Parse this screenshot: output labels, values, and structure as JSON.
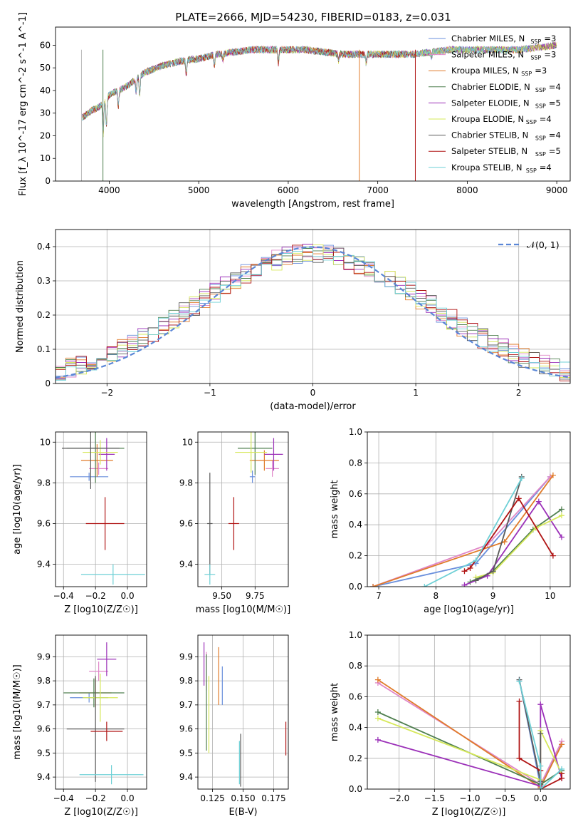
{
  "figure_title": "PLATE=2666, MJD=54230, FIBERID=0183, z=0.031",
  "models": [
    {
      "name": "Chabrier MILES",
      "nssp": "3",
      "color": "#6a8fdc"
    },
    {
      "name": "Salpeter MILES",
      "nssp": "3",
      "color": "#e087c8"
    },
    {
      "name": "Kroupa MILES",
      "nssp": "3",
      "color": "#e07b2a"
    },
    {
      "name": "Chabrier ELODIE",
      "nssp": "4",
      "color": "#4f7f4f"
    },
    {
      "name": "Salpeter ELODIE",
      "nssp": "5",
      "color": "#9b30b8"
    },
    {
      "name": "Kroupa ELODIE",
      "nssp": "4",
      "color": "#d6e85a"
    },
    {
      "name": "Chabrier STELIB",
      "nssp": "4",
      "color": "#5a5a5a"
    },
    {
      "name": "Salpeter STELIB",
      "nssp": "5",
      "color": "#b01515"
    },
    {
      "name": "Kroupa STELIB",
      "nssp": "4",
      "color": "#6ed0d6"
    }
  ],
  "chart_data": [
    {
      "id": "spectrum",
      "type": "line",
      "xlabel": "wavelength [Angstrom, rest frame]",
      "ylabel": "Flux [f_λ 10^-17 erg cm^-2 s^-1 A^-1]",
      "xlim": [
        3400,
        9150
      ],
      "ylim": [
        0,
        68
      ],
      "xticks": [
        4000,
        5000,
        6000,
        7000,
        8000,
        9000
      ],
      "yticks": [
        0,
        10,
        20,
        30,
        40,
        50,
        60
      ],
      "continuum_x": [
        3700,
        3800,
        3900,
        4000,
        4100,
        4200,
        4400,
        4600,
        4800,
        5000,
        5200,
        5400,
        5600,
        5800,
        6000,
        6200,
        6400,
        6600,
        6800,
        7000,
        7200,
        7400,
        7600,
        7800,
        8000,
        8200,
        8400,
        8600,
        8800,
        9000
      ],
      "continuum_y": [
        28,
        31,
        33,
        38,
        40,
        42,
        48,
        51,
        53,
        54,
        56,
        57,
        58,
        58,
        58,
        58,
        57,
        56,
        56,
        56,
        56,
        56,
        57,
        58,
        58,
        58,
        58,
        58,
        59,
        60
      ],
      "absorption_lines_x": [
        3933,
        3968,
        4102,
        4300,
        4340,
        4861,
        5175,
        5270,
        5890,
        6563,
        6870,
        7600
      ],
      "absorption_depth": [
        14,
        12,
        8,
        6,
        8,
        6,
        5,
        3,
        6,
        3,
        4,
        2
      ],
      "spikes": [
        {
          "x": 3930,
          "color": "#4f7f4f"
        },
        {
          "x": 6795,
          "color": "#e07b2a"
        },
        {
          "x": 7420,
          "color": "#b01515"
        },
        {
          "x": 3690,
          "color": "#bbbbbb"
        }
      ],
      "grid": false,
      "legend_position": "right"
    },
    {
      "id": "residuals",
      "type": "line",
      "xlabel": "(data-model)/error",
      "ylabel": "Normed distribution",
      "xlim": [
        -2.5,
        2.5
      ],
      "ylim": [
        0,
        0.45
      ],
      "xticks": [
        -2,
        -1,
        0,
        1,
        2
      ],
      "xticklabels": [
        "−2",
        "−1",
        "0",
        "1",
        "2"
      ],
      "yticks": [
        0.0,
        0.1,
        0.2,
        0.3,
        0.4
      ],
      "gaussian_label": "𝒩(0, 1)",
      "gaussian_color": "#5a86d6",
      "bin_width": 0.1,
      "grid": true,
      "legend_position": "top-right"
    },
    {
      "id": "age_vs_Z",
      "type": "scatter",
      "xlabel": "Z [log10(Z/Z☉)]",
      "ylabel": "age [log10(age/yr)]",
      "xlim": [
        -0.45,
        0.12
      ],
      "ylim": [
        9.29,
        10.05
      ],
      "xticks": [
        -0.4,
        -0.2,
        0.0
      ],
      "xticklabels": [
        "−0.4",
        "−0.2",
        "0.0"
      ],
      "yticks": [
        9.4,
        9.6,
        9.8,
        10.0
      ],
      "points": [
        {
          "m": 0,
          "x": -0.24,
          "y": 9.83,
          "xerr": 0.12,
          "yerr": 0.02
        },
        {
          "m": 1,
          "x": -0.18,
          "y": 9.87,
          "xerr": 0.06,
          "yerr": 0.03
        },
        {
          "m": 2,
          "x": -0.19,
          "y": 9.91,
          "xerr": 0.1,
          "yerr": 0.08
        },
        {
          "m": 3,
          "x": -0.2,
          "y": 9.97,
          "xerr": 0.18,
          "yerr": 0.17
        },
        {
          "m": 4,
          "x": -0.13,
          "y": 9.94,
          "xerr": 0.05,
          "yerr": 0.08
        },
        {
          "m": 5,
          "x": -0.17,
          "y": 9.95,
          "xerr": 0.11,
          "yerr": 0.06
        },
        {
          "m": 6,
          "x": -0.23,
          "y": 9.97,
          "xerr": 0.18,
          "yerr": 0.2
        },
        {
          "m": 7,
          "x": -0.14,
          "y": 9.6,
          "xerr": 0.12,
          "yerr": 0.13
        },
        {
          "m": 8,
          "x": -0.09,
          "y": 9.35,
          "xerr": 0.2,
          "yerr": 0.05
        }
      ],
      "grid": true
    },
    {
      "id": "age_vs_mass",
      "type": "scatter",
      "xlabel": "mass [log10(M/M☉)]",
      "ylabel": "",
      "xlim": [
        9.32,
        10.0
      ],
      "ylim": [
        9.29,
        10.05
      ],
      "xticks": [
        9.5,
        9.75
      ],
      "xticklabels": [
        "9.50",
        "9.75"
      ],
      "yticks": [
        9.4,
        9.6,
        9.8,
        10.0
      ],
      "points": [
        {
          "m": 0,
          "x": 9.73,
          "y": 9.83,
          "xerr": 0.02,
          "yerr": 0.03
        },
        {
          "m": 1,
          "x": 9.88,
          "y": 9.87,
          "xerr": 0.05,
          "yerr": 0.04
        },
        {
          "m": 2,
          "x": 9.82,
          "y": 9.91,
          "xerr": 0.11,
          "yerr": 0.05
        },
        {
          "m": 3,
          "x": 9.75,
          "y": 9.97,
          "xerr": 0.13,
          "yerr": 0.13
        },
        {
          "m": 4,
          "x": 9.89,
          "y": 9.94,
          "xerr": 0.07,
          "yerr": 0.08
        },
        {
          "m": 5,
          "x": 9.72,
          "y": 9.95,
          "xerr": 0.12,
          "yerr": 0.1
        },
        {
          "m": 6,
          "x": 9.41,
          "y": 9.6,
          "xerr": 0.02,
          "yerr": 0.25
        },
        {
          "m": 7,
          "x": 9.59,
          "y": 9.6,
          "xerr": 0.04,
          "yerr": 0.13
        },
        {
          "m": 8,
          "x": 9.41,
          "y": 9.35,
          "xerr": 0.04,
          "yerr": 0.05
        }
      ],
      "grid": true
    },
    {
      "id": "mass_weight_vs_age",
      "type": "line",
      "xlabel": "age [log10(age/yr)]",
      "ylabel": "mass weight",
      "xlim": [
        6.8,
        10.35
      ],
      "ylim": [
        0,
        1.0
      ],
      "xticks": [
        7,
        8,
        9,
        10
      ],
      "yticks": [
        0.0,
        0.2,
        0.4,
        0.6,
        0.8,
        1.0
      ],
      "yticklabels": [
        "0.0",
        "0.2",
        "0.4",
        "0.6",
        "0.8",
        "1.0"
      ],
      "series": [
        {
          "m": 0,
          "x": [
            6.9,
            8.7,
            10.0
          ],
          "y": [
            0.0,
            0.15,
            0.71
          ]
        },
        {
          "m": 1,
          "x": [
            6.9,
            8.9,
            10.0
          ],
          "y": [
            0.0,
            0.27,
            0.71
          ]
        },
        {
          "m": 2,
          "x": [
            6.9,
            9.2,
            10.05
          ],
          "y": [
            0.0,
            0.29,
            0.72
          ]
        },
        {
          "m": 3,
          "x": [
            8.6,
            9.0,
            9.7,
            10.2
          ],
          "y": [
            0.03,
            0.1,
            0.37,
            0.5
          ]
        },
        {
          "m": 4,
          "x": [
            8.5,
            8.9,
            9.8,
            10.2
          ],
          "y": [
            0.01,
            0.07,
            0.55,
            0.32
          ]
        },
        {
          "m": 5,
          "x": [
            8.7,
            9.0,
            9.75,
            10.2
          ],
          "y": [
            0.06,
            0.09,
            0.38,
            0.46
          ]
        },
        {
          "m": 6,
          "x": [
            8.7,
            9.0,
            9.5
          ],
          "y": [
            0.04,
            0.1,
            0.71
          ]
        },
        {
          "m": 7,
          "x": [
            8.5,
            8.6,
            9.45,
            10.05
          ],
          "y": [
            0.1,
            0.12,
            0.57,
            0.2
          ]
        },
        {
          "m": 8,
          "x": [
            7.8,
            8.7,
            9.5
          ],
          "y": [
            0.0,
            0.17,
            0.7
          ]
        }
      ],
      "grid": true
    },
    {
      "id": "mass_vs_Z",
      "type": "scatter",
      "xlabel": "Z [log10(Z/Z☉)]",
      "ylabel": "mass [log10(M/M☉)]",
      "xlim": [
        -0.45,
        0.12
      ],
      "ylim": [
        9.35,
        9.99
      ],
      "xticks": [
        -0.4,
        -0.2,
        0.0
      ],
      "xticklabels": [
        "−0.4",
        "−0.2",
        "0.0"
      ],
      "yticks": [
        9.4,
        9.5,
        9.6,
        9.7,
        9.8,
        9.9
      ],
      "points": [
        {
          "m": 0,
          "x": -0.24,
          "y": 9.73,
          "xerr": 0.12,
          "yerr": 0.02
        },
        {
          "m": 1,
          "x": -0.18,
          "y": 9.84,
          "xerr": 0.06,
          "yerr": 0.04
        },
        {
          "m": 2,
          "x": -0.2,
          "y": 9.75,
          "xerr": 0.1,
          "yerr": 0.06
        },
        {
          "m": 3,
          "x": -0.21,
          "y": 9.75,
          "xerr": 0.19,
          "yerr": 0.06
        },
        {
          "m": 4,
          "x": -0.13,
          "y": 9.89,
          "xerr": 0.06,
          "yerr": 0.07
        },
        {
          "m": 5,
          "x": -0.17,
          "y": 9.73,
          "xerr": 0.11,
          "yerr": 0.1
        },
        {
          "m": 6,
          "x": -0.2,
          "y": 9.6,
          "xerr": 0.18,
          "yerr": 0.22
        },
        {
          "m": 7,
          "x": -0.13,
          "y": 9.59,
          "xerr": 0.1,
          "yerr": 0.04
        },
        {
          "m": 8,
          "x": -0.1,
          "y": 9.41,
          "xerr": 0.2,
          "yerr": 0.04
        }
      ],
      "grid": true
    },
    {
      "id": "mass_vs_ebv",
      "type": "scatter",
      "xlabel": "E(B-V)",
      "ylabel": "",
      "xlim": [
        0.113,
        0.187
      ],
      "ylim": [
        9.35,
        9.99
      ],
      "xticks": [
        0.125,
        0.15,
        0.175
      ],
      "xticklabels": [
        "0.125",
        "0.150",
        "0.175"
      ],
      "yticks": [
        9.4,
        9.5,
        9.6,
        9.7,
        9.8,
        9.9
      ],
      "points": [
        {
          "m": 0,
          "x": 0.133,
          "y": 9.78,
          "xerr": 0,
          "yerr": 0.08
        },
        {
          "m": 1,
          "x": 0.12,
          "y": 9.84,
          "xerr": 0,
          "yerr": 0.08
        },
        {
          "m": 2,
          "x": 0.13,
          "y": 9.82,
          "xerr": 0,
          "yerr": 0.12
        },
        {
          "m": 3,
          "x": 0.12,
          "y": 9.71,
          "xerr": 0,
          "yerr": 0.2
        },
        {
          "m": 4,
          "x": 0.118,
          "y": 9.87,
          "xerr": 0,
          "yerr": 0.09
        },
        {
          "m": 5,
          "x": 0.122,
          "y": 9.66,
          "xerr": 0,
          "yerr": 0.16
        },
        {
          "m": 6,
          "x": 0.148,
          "y": 9.47,
          "xerr": 0,
          "yerr": 0.11
        },
        {
          "m": 7,
          "x": 0.185,
          "y": 9.56,
          "xerr": 0,
          "yerr": 0.07
        },
        {
          "m": 8,
          "x": 0.147,
          "y": 9.46,
          "xerr": 0,
          "yerr": 0.09
        }
      ],
      "grid": true
    },
    {
      "id": "mass_weight_vs_Z",
      "type": "line",
      "xlabel": "Z [log10(Z/Z☉)]",
      "ylabel": "mass weight",
      "xlim": [
        -2.45,
        0.42
      ],
      "ylim": [
        0,
        1.0
      ],
      "xticks": [
        -2.0,
        -1.5,
        -1.0,
        -0.5,
        0.0
      ],
      "xticklabels": [
        "−2.0",
        "−1.5",
        "−1.0",
        "−0.5",
        "0.0"
      ],
      "yticks": [
        0.0,
        0.2,
        0.4,
        0.6,
        0.8,
        1.0
      ],
      "yticklabels": [
        "0.0",
        "0.2",
        "0.4",
        "0.6",
        "0.8",
        "1.0"
      ],
      "series": [
        {
          "m": 0,
          "x": [
            -0.3,
            0.0,
            0.3
          ],
          "y": [
            0.71,
            0.02,
            0.29
          ]
        },
        {
          "m": 1,
          "x": [
            -2.3,
            0.0,
            0.3
          ],
          "y": [
            0.69,
            0.03,
            0.31
          ]
        },
        {
          "m": 2,
          "x": [
            -2.3,
            0.0,
            0.3
          ],
          "y": [
            0.71,
            0.01,
            0.29
          ]
        },
        {
          "m": 3,
          "x": [
            -2.3,
            0.0,
            0.3
          ],
          "y": [
            0.5,
            0.03,
            0.12
          ]
        },
        {
          "m": 4,
          "x": [
            -2.3,
            0.0,
            0.0,
            0.3
          ],
          "y": [
            0.32,
            0.02,
            0.55,
            0.07
          ]
        },
        {
          "m": 5,
          "x": [
            -2.3,
            0.0,
            0.0,
            0.3
          ],
          "y": [
            0.46,
            0.06,
            0.38,
            0.1
          ]
        },
        {
          "m": 6,
          "x": [
            -0.3,
            0.0,
            0.0
          ],
          "y": [
            0.71,
            0.05,
            0.36
          ]
        },
        {
          "m": 7,
          "x": [
            -0.3,
            -0.3,
            0.0,
            0.0,
            0.3,
            0.3
          ],
          "y": [
            0.57,
            0.2,
            0.12,
            0.0,
            0.07,
            0.1
          ]
        },
        {
          "m": 8,
          "x": [
            -0.3,
            0.0,
            0.0,
            0.3
          ],
          "y": [
            0.7,
            0.15,
            0.0,
            0.13
          ]
        }
      ],
      "grid": true
    }
  ]
}
